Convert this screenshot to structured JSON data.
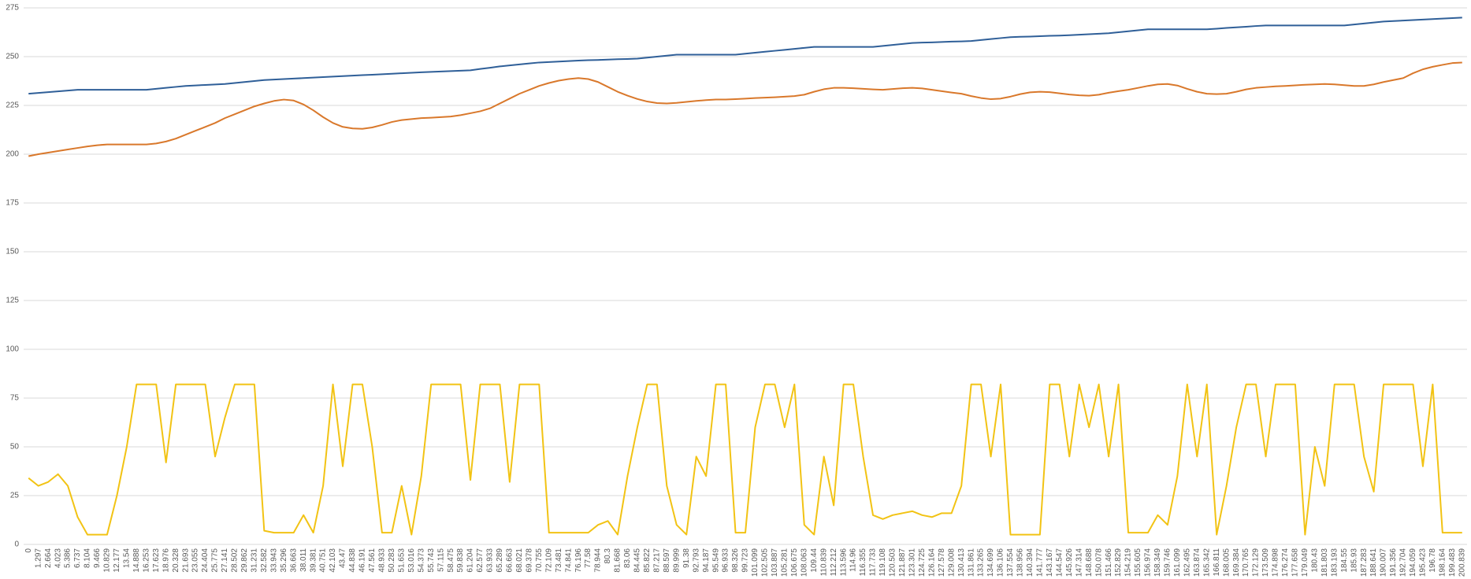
{
  "chart_data": {
    "type": "line",
    "categories": [
      0,
      1.297,
      2.664,
      4.023,
      5.386,
      6.737,
      8.104,
      9.466,
      10.829,
      12.177,
      13.54,
      14.888,
      16.253,
      17.623,
      18.976,
      20.328,
      21.693,
      23.055,
      24.404,
      25.775,
      27.141,
      28.502,
      29.862,
      31.231,
      32.582,
      33.943,
      35.296,
      36.663,
      38.011,
      39.381,
      40.751,
      42.103,
      43.47,
      44.838,
      46.191,
      47.561,
      48.933,
      50.283,
      51.653,
      53.016,
      54.373,
      55.743,
      57.115,
      58.475,
      59.838,
      61.204,
      62.577,
      63.933,
      65.289,
      66.663,
      68.021,
      69.378,
      70.755,
      72.109,
      73.481,
      74.841,
      76.196,
      77.58,
      78.944,
      80.3,
      81.668,
      83.06,
      84.445,
      85.822,
      87.217,
      88.597,
      89.999,
      91.38,
      92.793,
      94.187,
      95.549,
      96.933,
      98.326,
      99.723,
      101.099,
      102.505,
      103.887,
      105.281,
      106.675,
      108.063,
      109.44,
      110.839,
      112.212,
      113.596,
      114.96,
      116.355,
      117.733,
      119.108,
      120.503,
      121.887,
      123.301,
      124.725,
      126.164,
      127.578,
      129.008,
      130.413,
      131.861,
      133.265,
      134.699,
      136.106,
      137.554,
      138.956,
      140.394,
      141.777,
      143.167,
      144.547,
      145.926,
      147.314,
      148.688,
      150.078,
      151.466,
      152.829,
      154.219,
      155.605,
      156.974,
      158.349,
      159.746,
      161.099,
      162.495,
      163.874,
      165.342,
      166.811,
      168.005,
      169.384,
      170.765,
      172.129,
      173.509,
      174.898,
      176.274,
      177.658,
      179.049,
      180.43,
      181.803,
      183.193,
      184.55,
      185.93,
      187.283,
      188.641,
      190.007,
      191.356,
      192.704,
      194.059,
      195.423,
      196.78,
      198.164,
      199.483,
      200.839
    ],
    "series": [
      {
        "color": "#2f5f98",
        "values": [
          231,
          231.4,
          231.8,
          232.2,
          232.6,
          233,
          233,
          233,
          233,
          233,
          233,
          233,
          233,
          233.5,
          234,
          234.5,
          235,
          235.25,
          235.5,
          235.75,
          236,
          236.5,
          237,
          237.5,
          238,
          238.25,
          238.5,
          238.75,
          239,
          239.25,
          239.5,
          239.75,
          240,
          240.25,
          240.5,
          240.75,
          241,
          241.25,
          241.5,
          241.75,
          242,
          242.2,
          242.4,
          242.6,
          242.8,
          243,
          243.7,
          244.3,
          245,
          245.5,
          246,
          246.5,
          247,
          247.25,
          247.5,
          247.75,
          248,
          248.2,
          248.3,
          248.5,
          248.7,
          248.8,
          249,
          249.5,
          250,
          250.5,
          251,
          251,
          251,
          251,
          251,
          251,
          251,
          251.5,
          252,
          252.5,
          253,
          253.5,
          254,
          254.5,
          255,
          255,
          255,
          255,
          255,
          255,
          255,
          255.5,
          256,
          256.5,
          257,
          257.2,
          257.3,
          257.5,
          257.7,
          257.8,
          258,
          258.5,
          259,
          259.5,
          260,
          260.2,
          260.3,
          260.5,
          260.7,
          260.8,
          261,
          261.25,
          261.5,
          261.75,
          262,
          262.5,
          263,
          263.5,
          264,
          264,
          264,
          264,
          264,
          264,
          264,
          264.3,
          264.7,
          265,
          265.3,
          265.7,
          266,
          266,
          266,
          266,
          266,
          266,
          266,
          266,
          266,
          266.5,
          267,
          267.5,
          268,
          268.25,
          268.5,
          268.75,
          269,
          269.25,
          269.5,
          269.75,
          270
        ]
      },
      {
        "color": "#d9782b",
        "values": [
          199,
          200,
          200.8,
          201.6,
          202.4,
          203.2,
          204,
          204.6,
          205,
          205,
          205,
          205,
          205,
          205.5,
          206.5,
          208,
          210,
          212,
          214,
          216,
          218.5,
          220.5,
          222.5,
          224.5,
          226,
          227.3,
          228,
          227.5,
          225.5,
          222.5,
          219,
          216,
          214,
          213.2,
          213,
          213.7,
          215,
          216.5,
          217.5,
          218,
          218.5,
          218.7,
          219,
          219.3,
          220,
          221,
          222,
          223.5,
          226,
          228.5,
          231,
          233,
          235,
          236.5,
          237.7,
          238.5,
          239,
          238.5,
          237,
          234.5,
          232,
          230,
          228.3,
          227,
          226.2,
          226,
          226.3,
          226.8,
          227.3,
          227.7,
          228,
          228,
          228.2,
          228.5,
          228.8,
          229,
          229.2,
          229.5,
          229.8,
          230.5,
          232,
          233.3,
          234,
          234,
          233.8,
          233.5,
          233.2,
          233,
          233.4,
          233.8,
          234,
          233.7,
          233,
          232.3,
          231.6,
          231,
          229.8,
          228.8,
          228.2,
          228.5,
          229.5,
          230.8,
          231.7,
          232,
          231.8,
          231.2,
          230.6,
          230.2,
          230,
          230.5,
          231.5,
          232.3,
          233,
          234,
          235,
          235.8,
          236,
          235.2,
          233.5,
          232,
          231,
          230.8,
          231,
          232,
          233.2,
          234,
          234.4,
          234.8,
          235,
          235.3,
          235.6,
          235.8,
          236,
          235.8,
          235.4,
          235,
          235,
          235.8,
          237,
          238,
          239,
          241.5,
          243.5,
          244.8,
          245.8,
          246.7,
          247
        ]
      },
      {
        "color": "#f2c314",
        "values": [
          34,
          30,
          32,
          36,
          30,
          14,
          5,
          5,
          5,
          25,
          50,
          82,
          82,
          82,
          42,
          82,
          82,
          82,
          82,
          45,
          65,
          82,
          82,
          82,
          7,
          6,
          6,
          6,
          15,
          6,
          30,
          82,
          40,
          82,
          82,
          50,
          6,
          6,
          30,
          5,
          35,
          82,
          82,
          82,
          82,
          33,
          82,
          82,
          82,
          32,
          82,
          82,
          82,
          6,
          6,
          6,
          6,
          6,
          10,
          12,
          5,
          35,
          60,
          82,
          82,
          30,
          10,
          5,
          45,
          35,
          82,
          82,
          6,
          6,
          60,
          82,
          82,
          60,
          82,
          10,
          5,
          45,
          20,
          82,
          82,
          45,
          15,
          13,
          15,
          16,
          17,
          15,
          14,
          16,
          16,
          30,
          82,
          82,
          45,
          82,
          5,
          5,
          5,
          5,
          82,
          82,
          45,
          82,
          60,
          82,
          45,
          82,
          6,
          6,
          6,
          15,
          10,
          35,
          82,
          45,
          82,
          5,
          30,
          60,
          82,
          82,
          45,
          82,
          82,
          82,
          5,
          50,
          30,
          82,
          82,
          82,
          45,
          27,
          82,
          82,
          82,
          82,
          40,
          82,
          6,
          6,
          6
        ]
      }
    ],
    "ylim": [
      0,
      275
    ],
    "yticks": [
      0,
      25,
      50,
      75,
      100,
      125,
      150,
      175,
      200,
      225,
      250,
      275
    ],
    "grid": true
  }
}
